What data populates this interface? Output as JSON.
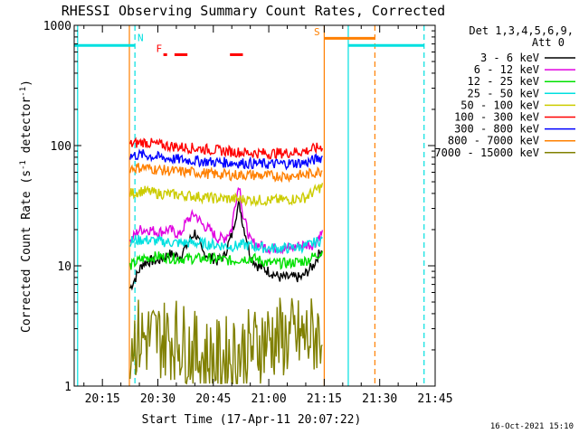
{
  "chart_data": {
    "type": "line",
    "title": "RHESSI Observing Summary Count Rates, Corrected",
    "xlabel": "Start Time (17-Apr-11 20:07:22)",
    "ylabel_main": "Corrected Count Rate (s",
    "ylabel_sup1": "-1",
    "ylabel_mid": " detector",
    "ylabel_sup2": "-1",
    "ylabel_end": ")",
    "footer": "16-Oct-2021 15:10",
    "y_scale": "log",
    "ylim": [
      1,
      1000
    ],
    "xlim_minutes": [
      7.37,
      105
    ],
    "x_ticks": [
      {
        "m": 15,
        "label": "20:15"
      },
      {
        "m": 30,
        "label": "20:30"
      },
      {
        "m": 45,
        "label": "20:45"
      },
      {
        "m": 60,
        "label": "21:00"
      },
      {
        "m": 75,
        "label": "21:15"
      },
      {
        "m": 90,
        "label": "21:30"
      },
      {
        "m": 105,
        "label": "21:45"
      }
    ],
    "y_ticks": [
      {
        "v": 1,
        "label": "1"
      },
      {
        "v": 10,
        "label": "10"
      },
      {
        "v": 100,
        "label": "100"
      },
      {
        "v": 1000,
        "label": "1000"
      }
    ],
    "legend_title_1": "Det 1,3,4,5,6,9,",
    "legend_title_2": "Att 0",
    "legend_position": "right",
    "series": [
      {
        "name": "3 - 6 keV",
        "color": "#000000",
        "x": [
          22.5,
          24,
          26,
          28,
          30,
          33,
          36,
          38,
          40,
          42,
          44,
          46,
          48,
          50,
          52,
          53,
          55,
          57,
          60,
          63,
          66,
          69,
          72,
          74.5
        ],
        "y": [
          6.5,
          8,
          10.5,
          11,
          11,
          12.5,
          12,
          15,
          19,
          13,
          12,
          11,
          12,
          18,
          33,
          22,
          12,
          10,
          9,
          8,
          8,
          8,
          10,
          14
        ]
      },
      {
        "name": "6 - 12 keV",
        "color": "#e000e0",
        "x": [
          22.5,
          25,
          28,
          30,
          33,
          36,
          38,
          40,
          42,
          44,
          46,
          48,
          50,
          52,
          53,
          55,
          57,
          60,
          63,
          66,
          69,
          72,
          74.5
        ],
        "y": [
          16,
          20,
          20,
          19,
          20,
          18,
          24,
          27,
          22,
          20,
          17,
          17,
          20,
          48,
          26,
          16,
          15,
          14,
          14,
          14,
          15,
          15,
          19
        ]
      },
      {
        "name": "12 - 25 keV",
        "color": "#00e000",
        "x": [
          22.5,
          26,
          30,
          35,
          40,
          45,
          50,
          53,
          56,
          60,
          65,
          70,
          74.5
        ],
        "y": [
          10,
          11.5,
          12,
          11.5,
          11.5,
          11.5,
          11,
          11.5,
          11.5,
          10.5,
          10.5,
          11,
          13
        ]
      },
      {
        "name": "25 - 50 keV",
        "color": "#00e0e0",
        "x": [
          22.5,
          26,
          30,
          35,
          40,
          45,
          50,
          53,
          56,
          60,
          65,
          70,
          74.5
        ],
        "y": [
          16,
          16.5,
          16,
          15.5,
          15.5,
          15,
          14.5,
          15,
          14.5,
          14,
          14,
          14.5,
          16.5
        ]
      },
      {
        "name": "50 - 100 keV",
        "color": "#cccc00",
        "x": [
          22.5,
          26,
          30,
          35,
          40,
          45,
          50,
          55,
          60,
          65,
          70,
          74.5
        ],
        "y": [
          40,
          42,
          40,
          39,
          38,
          36.5,
          36,
          35.5,
          35,
          35.5,
          37,
          46
        ]
      },
      {
        "name": "100 - 300 keV",
        "color": "#ff0000",
        "x": [
          22.5,
          26,
          30,
          35,
          40,
          45,
          50,
          55,
          60,
          65,
          70,
          74.5
        ],
        "y": [
          102,
          107,
          102,
          98,
          95,
          92,
          89,
          87,
          86,
          87,
          90,
          98
        ]
      },
      {
        "name": "300 - 800 keV",
        "color": "#0000ff",
        "x": [
          22.5,
          26,
          30,
          35,
          40,
          45,
          50,
          55,
          60,
          65,
          70,
          74.5
        ],
        "y": [
          82,
          84,
          80,
          77,
          75,
          73,
          72,
          71,
          70,
          71,
          72,
          80
        ]
      },
      {
        "name": "800 - 7000 keV",
        "color": "#ff8000",
        "x": [
          22.5,
          26,
          30,
          35,
          40,
          45,
          50,
          55,
          60,
          65,
          70,
          74.5
        ],
        "y": [
          65,
          66,
          63,
          61,
          60,
          58,
          57,
          57,
          56,
          56,
          57,
          62
        ]
      },
      {
        "name": "7000 - 15000 keV",
        "color": "#808000",
        "x": [
          22.5,
          30,
          35,
          40,
          45,
          50,
          55,
          60,
          65,
          70,
          74.5
        ],
        "y": [
          2.5,
          2.5,
          2.5,
          1.9,
          1.6,
          1.8,
          2,
          2.5,
          2.5,
          2.5,
          2.8
        ]
      }
    ],
    "flag_lines": [
      {
        "label": "N",
        "color": "#00e0e0",
        "segments": [
          [
            7.37,
            23.8
          ],
          [
            81.5,
            102
          ]
        ],
        "value": 680
      },
      {
        "label": "F",
        "color": "#ff0000",
        "segments": [
          [
            31.5,
            32.5
          ],
          [
            34.5,
            38
          ],
          [
            49.5,
            53
          ]
        ],
        "value": 570
      },
      {
        "label": "S",
        "color": "#ff8000",
        "segments": [
          [
            75,
            88.7
          ]
        ],
        "value": 780
      }
    ],
    "flag_label_positions": [
      {
        "label": "N",
        "m": 24.5,
        "v": 740
      },
      {
        "label": "F",
        "m": 29.5,
        "v": 600
      },
      {
        "label": "S",
        "m": 72.2,
        "v": 830
      }
    ],
    "vlines": [
      {
        "m": 8.3,
        "color": "#00e0e0",
        "dash": false
      },
      {
        "m": 23.8,
        "color": "#00e0e0",
        "dash": true
      },
      {
        "m": 22.3,
        "color": "#ff8000",
        "dash": false
      },
      {
        "m": 75,
        "color": "#ff8000",
        "dash": false
      },
      {
        "m": 81.5,
        "color": "#00e0e0",
        "dash": false
      },
      {
        "m": 88.7,
        "color": "#ff8000",
        "dash": true
      },
      {
        "m": 102,
        "color": "#00e0e0",
        "dash": true
      }
    ]
  }
}
